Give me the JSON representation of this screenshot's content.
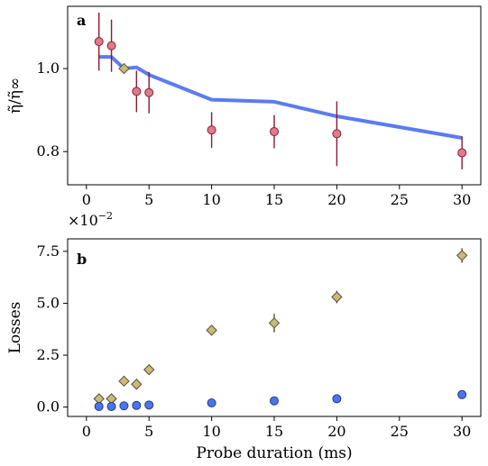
{
  "chart_data": [
    {
      "type": "scatter",
      "panel_label": "a",
      "ylabel": "η̃/η̃∞",
      "xlabel": "",
      "xlim": [
        -1.5,
        31.5
      ],
      "ylim": [
        0.72,
        1.15
      ],
      "xticks": [
        0,
        5,
        10,
        15,
        20,
        25,
        30
      ],
      "yticks": [
        0.8,
        1.0
      ],
      "xtick_labels": [
        "0",
        "5",
        "10",
        "15",
        "20",
        "25",
        "30"
      ],
      "ytick_labels": [
        "0.8",
        "1.0"
      ],
      "grid": false,
      "series": [
        {
          "kind": "errorbar",
          "marker": "circle",
          "color": "#e07b8a",
          "edge": "#8b1a35",
          "x": [
            1,
            2,
            4,
            5,
            10,
            15,
            20,
            30
          ],
          "y": [
            1.065,
            1.055,
            0.945,
            0.942,
            0.852,
            0.848,
            0.843,
            0.797
          ],
          "yerr": [
            0.07,
            0.063,
            0.05,
            0.05,
            0.043,
            0.04,
            0.078,
            0.04
          ]
        },
        {
          "kind": "marker",
          "marker": "diamond",
          "color": "#c9b97a",
          "edge": "#5a5030",
          "x": [
            3
          ],
          "y": [
            1.0
          ]
        },
        {
          "kind": "line",
          "color": "#5b7cf0",
          "x": [
            1,
            2,
            3,
            4,
            5,
            10,
            15,
            20,
            30
          ],
          "y": [
            1.028,
            1.028,
            1.0,
            1.003,
            0.985,
            0.925,
            0.92,
            0.885,
            0.833
          ]
        }
      ]
    },
    {
      "type": "scatter",
      "panel_label": "b",
      "ylabel": "Losses",
      "xlabel": "Probe duration (ms)",
      "offset_base": "×10",
      "offset_exp": "−2",
      "xlim": [
        -1.5,
        31.5
      ],
      "ylim": [
        -0.45,
        8.1
      ],
      "xticks": [
        0,
        5,
        10,
        15,
        20,
        25,
        30
      ],
      "yticks": [
        0.0,
        2.5,
        5.0,
        7.5
      ],
      "xtick_labels": [
        "0",
        "5",
        "10",
        "15",
        "20",
        "25",
        "30"
      ],
      "ytick_labels": [
        "0.0",
        "2.5",
        "5.0",
        "7.5"
      ],
      "grid": false,
      "series": [
        {
          "kind": "errorbar",
          "marker": "diamond",
          "color": "#c9b97a",
          "edge": "#5a5030",
          "x": [
            1,
            2,
            3,
            4,
            5,
            10,
            15,
            20,
            30
          ],
          "y": [
            0.4,
            0.4,
            1.25,
            1.1,
            1.8,
            3.7,
            4.05,
            5.3,
            7.3
          ],
          "yerr": [
            0.2,
            0.25,
            0.2,
            0.25,
            0.25,
            0.25,
            0.45,
            0.3,
            0.35
          ]
        },
        {
          "kind": "marker",
          "marker": "circle",
          "color": "#4d74f0",
          "edge": "#1f3a8a",
          "x": [
            1,
            2,
            3,
            4,
            5,
            10,
            15,
            20,
            30
          ],
          "y": [
            0.03,
            0.03,
            0.06,
            0.08,
            0.1,
            0.2,
            0.3,
            0.4,
            0.6
          ]
        }
      ]
    }
  ]
}
